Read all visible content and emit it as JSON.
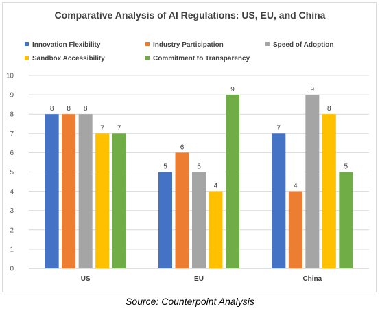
{
  "chart_data": {
    "type": "bar",
    "title": "Comparative Analysis of AI Regulations: US, EU, and China",
    "categories": [
      "US",
      "EU",
      "China"
    ],
    "series": [
      {
        "name": "Innovation Flexibility",
        "color": "#4472c4",
        "values": [
          8,
          5,
          7
        ]
      },
      {
        "name": "Industry Participation",
        "color": "#ed7d31",
        "values": [
          8,
          6,
          4
        ]
      },
      {
        "name": "Speed of Adoption",
        "color": "#a5a5a5",
        "values": [
          8,
          5,
          9
        ]
      },
      {
        "name": "Sandbox Accessibility",
        "color": "#ffc000",
        "values": [
          7,
          4,
          8
        ]
      },
      {
        "name": "Commitment to Transparency",
        "color": "#70ad47",
        "values": [
          7,
          9,
          5
        ]
      }
    ],
    "ylim": [
      0,
      10
    ],
    "yticks": [
      "0",
      "1",
      "2",
      "3",
      "4",
      "5",
      "6",
      "7",
      "8",
      "9",
      "10"
    ],
    "grid": true,
    "legend_position": "top",
    "data_labels": true
  },
  "source": "Source: Counterpoint Analysis"
}
